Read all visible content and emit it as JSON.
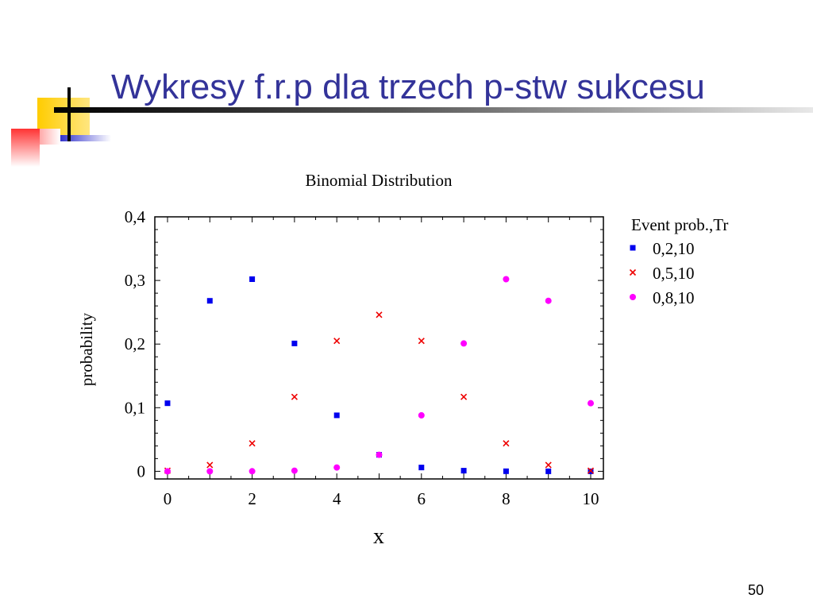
{
  "slide": {
    "title": "Wykresy f.r.p dla trzech p-stw sukcesu",
    "page_number": "50"
  },
  "colors": {
    "title": "#333399",
    "series_blue": "#0000ee",
    "series_red": "#ee0000",
    "series_magenta": "#ff00ff",
    "deco_yellow": "#ffcc00",
    "deco_red": "#ff3333",
    "deco_blue": "#3333cc"
  },
  "chart_data": {
    "type": "scatter",
    "title": "Binomial Distribution",
    "xlabel": "x",
    "ylabel": "probability",
    "xlim": [
      -0.3,
      10.3
    ],
    "ylim": [
      -0.012,
      0.4
    ],
    "x_ticks": [
      0,
      2,
      4,
      6,
      8,
      10
    ],
    "y_ticks": [
      0,
      0.1,
      0.2,
      0.3,
      0.4
    ],
    "x_tick_labels": [
      "0",
      "2",
      "4",
      "6",
      "8",
      "10"
    ],
    "y_tick_labels": [
      "0",
      "0,1",
      "0,2",
      "0,3",
      "0,4"
    ],
    "legend_title": "Event prob.,Tr",
    "legend_position": "right-outside",
    "grid": false,
    "x": [
      0,
      1,
      2,
      3,
      4,
      5,
      6,
      7,
      8,
      9,
      10
    ],
    "series": [
      {
        "name": "0,2,10",
        "marker": "square",
        "color": "#0000ee",
        "values": [
          0.107,
          0.268,
          0.302,
          0.201,
          0.088,
          0.026,
          0.006,
          0.001,
          0.0001,
          0.0,
          0.0
        ]
      },
      {
        "name": "0,5,10",
        "marker": "x",
        "color": "#ee0000",
        "values": [
          0.001,
          0.01,
          0.044,
          0.117,
          0.205,
          0.246,
          0.205,
          0.117,
          0.044,
          0.01,
          0.001
        ]
      },
      {
        "name": "0,8,10",
        "marker": "circle",
        "color": "#ff00ff",
        "values": [
          0.0,
          0.0,
          0.0001,
          0.001,
          0.006,
          0.026,
          0.088,
          0.201,
          0.302,
          0.268,
          0.107
        ]
      }
    ]
  }
}
